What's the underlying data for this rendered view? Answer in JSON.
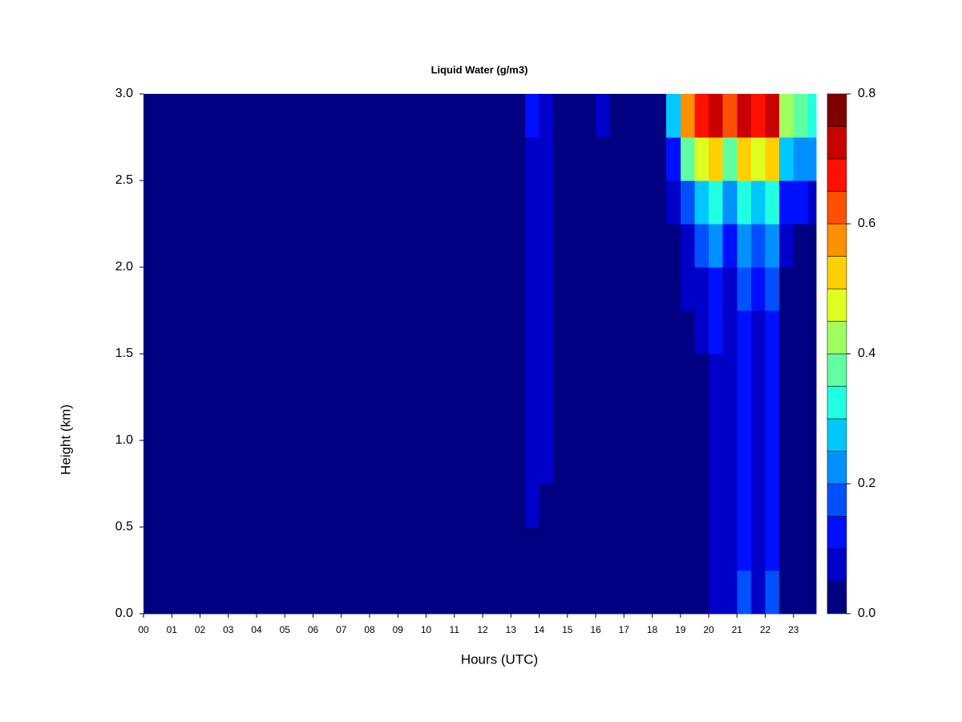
{
  "chart_data": {
    "type": "heatmap",
    "title": "Liquid Water (g/m3)",
    "xlabel": "Hours (UTC)",
    "ylabel": "Height (km)",
    "xbins": [
      0,
      0.5,
      1,
      1.5,
      2,
      2.5,
      3,
      3.5,
      4,
      4.5,
      5,
      5.5,
      6,
      6.5,
      7,
      7.5,
      8,
      8.5,
      9,
      9.5,
      10,
      10.5,
      11,
      11.5,
      12,
      12.5,
      13,
      13.5,
      14,
      14.5,
      15,
      15.5,
      16,
      16.5,
      17,
      17.5,
      18,
      18.5,
      19,
      19.5,
      20,
      20.5,
      21,
      21.5,
      22,
      22.5,
      23,
      23.5,
      23.8
    ],
    "ybins": [
      0,
      0.25,
      0.5,
      0.75,
      1,
      1.25,
      1.5,
      1.75,
      2,
      2.25,
      2.5,
      2.75,
      3
    ],
    "values": [
      [
        0,
        0,
        0,
        0,
        0,
        0,
        0,
        0,
        0,
        0,
        0,
        0,
        0,
        0,
        0,
        0,
        0,
        0,
        0,
        0,
        0,
        0,
        0,
        0,
        0,
        0,
        0,
        0,
        0,
        0,
        0,
        0,
        0,
        0,
        0,
        0,
        0,
        0,
        0,
        0.02,
        0.08,
        0.05,
        0.18,
        0.06,
        0.18,
        0.02,
        0,
        0
      ],
      [
        0,
        0,
        0,
        0,
        0,
        0,
        0,
        0,
        0,
        0,
        0,
        0,
        0,
        0,
        0,
        0,
        0,
        0,
        0,
        0,
        0,
        0,
        0,
        0,
        0,
        0,
        0,
        0.03,
        0.02,
        0,
        0,
        0,
        0,
        0,
        0,
        0,
        0,
        0,
        0,
        0.02,
        0.08,
        0.05,
        0.12,
        0.06,
        0.12,
        0.02,
        0,
        0
      ],
      [
        0,
        0,
        0,
        0,
        0,
        0,
        0,
        0,
        0,
        0,
        0,
        0,
        0,
        0,
        0,
        0,
        0,
        0,
        0,
        0,
        0,
        0,
        0,
        0,
        0,
        0,
        0,
        0.06,
        0.04,
        0,
        0,
        0,
        0,
        0,
        0,
        0,
        0,
        0,
        0,
        0.02,
        0.08,
        0.05,
        0.12,
        0.06,
        0.12,
        0,
        0,
        0
      ],
      [
        0,
        0,
        0,
        0,
        0,
        0,
        0,
        0,
        0,
        0,
        0,
        0,
        0,
        0,
        0,
        0,
        0,
        0,
        0,
        0,
        0,
        0,
        0,
        0,
        0,
        0,
        0,
        0.07,
        0.05,
        0,
        0,
        0,
        0,
        0,
        0,
        0,
        0,
        0,
        0,
        0.03,
        0.08,
        0.05,
        0.12,
        0.06,
        0.12,
        0,
        0,
        0
      ],
      [
        0,
        0,
        0,
        0,
        0,
        0,
        0,
        0,
        0,
        0,
        0,
        0,
        0,
        0,
        0,
        0,
        0,
        0,
        0,
        0,
        0,
        0,
        0,
        0,
        0,
        0,
        0,
        0.07,
        0.05,
        0,
        0,
        0,
        0,
        0,
        0,
        0,
        0,
        0,
        0,
        0.03,
        0.08,
        0.05,
        0.12,
        0.06,
        0.12,
        0,
        0,
        0
      ],
      [
        0,
        0,
        0,
        0,
        0,
        0,
        0,
        0,
        0,
        0,
        0,
        0,
        0,
        0,
        0,
        0,
        0,
        0,
        0,
        0,
        0,
        0,
        0,
        0,
        0,
        0,
        0,
        0.08,
        0.05,
        0,
        0,
        0,
        0,
        0,
        0,
        0,
        0,
        0,
        0.02,
        0.04,
        0.08,
        0.05,
        0.12,
        0.06,
        0.12,
        0,
        0,
        0
      ],
      [
        0,
        0,
        0,
        0,
        0,
        0,
        0,
        0,
        0,
        0,
        0,
        0,
        0,
        0,
        0,
        0,
        0,
        0,
        0,
        0,
        0,
        0,
        0,
        0,
        0,
        0,
        0,
        0.08,
        0.05,
        0,
        0,
        0,
        0,
        0,
        0,
        0,
        0,
        0,
        0.03,
        0.05,
        0.1,
        0.06,
        0.12,
        0.08,
        0.12,
        0.02,
        0,
        0
      ],
      [
        0,
        0,
        0,
        0,
        0,
        0,
        0,
        0,
        0,
        0,
        0,
        0,
        0,
        0,
        0,
        0,
        0,
        0,
        0,
        0,
        0,
        0,
        0,
        0,
        0,
        0,
        0,
        0.08,
        0.05,
        0,
        0,
        0,
        0,
        0,
        0,
        0,
        0,
        0,
        0.05,
        0.08,
        0.12,
        0.08,
        0.15,
        0.1,
        0.15,
        0.03,
        0.02,
        0
      ],
      [
        0,
        0,
        0,
        0,
        0,
        0,
        0,
        0,
        0,
        0,
        0,
        0,
        0,
        0,
        0,
        0,
        0,
        0,
        0,
        0,
        0,
        0,
        0,
        0,
        0,
        0,
        0,
        0.08,
        0.05,
        0,
        0,
        0,
        0,
        0,
        0,
        0,
        0,
        0.03,
        0.08,
        0.15,
        0.2,
        0.12,
        0.2,
        0.15,
        0.2,
        0.05,
        0.03,
        0.02
      ],
      [
        0,
        0,
        0,
        0,
        0,
        0,
        0,
        0,
        0,
        0,
        0,
        0,
        0,
        0,
        0,
        0,
        0,
        0,
        0,
        0,
        0,
        0,
        0,
        0,
        0,
        0,
        0,
        0.08,
        0.05,
        0,
        0,
        0,
        0,
        0,
        0,
        0,
        0,
        0.05,
        0.15,
        0.25,
        0.3,
        0.2,
        0.3,
        0.25,
        0.3,
        0.12,
        0.1,
        0.05
      ],
      [
        0,
        0,
        0,
        0,
        0,
        0,
        0,
        0,
        0,
        0,
        0,
        0,
        0,
        0,
        0,
        0,
        0,
        0,
        0,
        0,
        0,
        0,
        0,
        0,
        0,
        0,
        0,
        0.08,
        0.05,
        0,
        0,
        0,
        0.03,
        0,
        0,
        0,
        0,
        0.1,
        0.35,
        0.45,
        0.5,
        0.35,
        0.5,
        0.45,
        0.5,
        0.25,
        0.2,
        0.2
      ],
      [
        0,
        0,
        0,
        0,
        0,
        0,
        0,
        0,
        0,
        0,
        0,
        0,
        0,
        0,
        0,
        0,
        0,
        0,
        0,
        0,
        0,
        0,
        0,
        0,
        0,
        0,
        0,
        0.1,
        0.08,
        0,
        0,
        0,
        0.05,
        0,
        0,
        0,
        0,
        0.25,
        0.55,
        0.65,
        0.7,
        0.6,
        0.7,
        0.65,
        0.7,
        0.4,
        0.35,
        0.3
      ]
    ],
    "levels": [
      0,
      0.05,
      0.1,
      0.15,
      0.2,
      0.25,
      0.3,
      0.35,
      0.4,
      0.45,
      0.5,
      0.55,
      0.6,
      0.65,
      0.7,
      0.75,
      0.8
    ],
    "colors": [
      "#000080",
      "#0000C8",
      "#0010FF",
      "#0050FF",
      "#0090FF",
      "#00C8FF",
      "#20FFE0",
      "#60FF9F",
      "#9FFF60",
      "#DFFF20",
      "#FFD000",
      "#FF9000",
      "#FF5000",
      "#FF1000",
      "#C80000",
      "#800000"
    ],
    "xlim": [
      0,
      23.8
    ],
    "ylim": [
      0,
      3
    ],
    "xticks": [
      {
        "value": 0,
        "label": "00"
      },
      {
        "value": 1,
        "label": "01"
      },
      {
        "value": 2,
        "label": "02"
      },
      {
        "value": 3,
        "label": "03"
      },
      {
        "value": 4,
        "label": "04"
      },
      {
        "value": 5,
        "label": "05"
      },
      {
        "value": 6,
        "label": "06"
      },
      {
        "value": 7,
        "label": "07"
      },
      {
        "value": 8,
        "label": "08"
      },
      {
        "value": 9,
        "label": "09"
      },
      10,
      11,
      12,
      13,
      14,
      15,
      16,
      17,
      18,
      19,
      20,
      21,
      22,
      23
    ],
    "yticks": [
      {
        "value": 0,
        "label": "0.0"
      },
      0.5,
      {
        "value": 1,
        "label": "1.0"
      },
      1.5,
      {
        "value": 2,
        "label": "2.0"
      },
      2.5,
      {
        "value": 3,
        "label": "3.0"
      }
    ],
    "colorbar_ticks": [
      {
        "value": 0,
        "label": "0.0"
      },
      0.2,
      0.4,
      0.6,
      0.8
    ]
  }
}
